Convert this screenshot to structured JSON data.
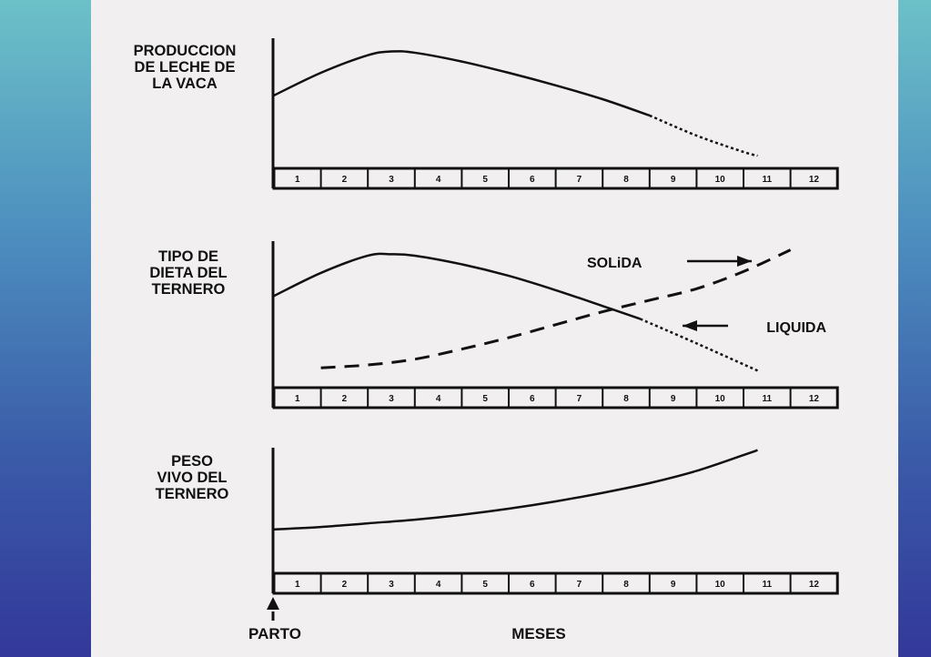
{
  "chart_data": [
    {
      "type": "line",
      "label_lines": [
        "PRODUCCION",
        "DE LECHE DE",
        "LA VACA"
      ],
      "categories": [
        "1",
        "2",
        "3",
        "4",
        "5",
        "6",
        "7",
        "8",
        "9",
        "10",
        "11",
        "12"
      ],
      "series": [
        {
          "style": "solid",
          "x": [
            0,
            1,
            2,
            2.5,
            3,
            4,
            5,
            6,
            7,
            8
          ],
          "y": [
            0.53,
            0.71,
            0.85,
            0.88,
            0.87,
            0.8,
            0.71,
            0.61,
            0.5,
            0.37
          ]
        },
        {
          "style": "dotted",
          "x": [
            8,
            9,
            10,
            10.3
          ],
          "y": [
            0.37,
            0.21,
            0.08,
            0.05
          ]
        }
      ]
    },
    {
      "type": "line",
      "label_lines": [
        "TIPO DE",
        "DIETA DEL",
        "TERNERO"
      ],
      "categories": [
        "1",
        "2",
        "3",
        "4",
        "5",
        "6",
        "7",
        "8",
        "9",
        "10",
        "11",
        "12"
      ],
      "annotations": [
        {
          "text": "SOLiDA",
          "arrow": "right"
        },
        {
          "text": "LIQUIDA",
          "arrow": "left"
        }
      ],
      "series": [
        {
          "name": "LIQUIDA",
          "style": "solid",
          "x": [
            0,
            1,
            2,
            2.5,
            3,
            4,
            5,
            6,
            7,
            7.8
          ],
          "y": [
            0.6,
            0.76,
            0.88,
            0.89,
            0.88,
            0.82,
            0.74,
            0.64,
            0.53,
            0.44
          ]
        },
        {
          "name": "LIQUIDA",
          "style": "dotted",
          "x": [
            7.8,
            9,
            10.3
          ],
          "y": [
            0.44,
            0.27,
            0.08
          ]
        },
        {
          "name": "SOLiDA",
          "style": "dashed",
          "x": [
            1,
            2,
            3,
            4,
            5,
            6,
            7,
            8,
            9,
            10,
            11
          ],
          "y": [
            0.1,
            0.12,
            0.16,
            0.23,
            0.31,
            0.4,
            0.49,
            0.57,
            0.65,
            0.77,
            0.92
          ]
        }
      ]
    },
    {
      "type": "line",
      "label_lines": [
        "PESO",
        "VIVO DEL",
        "TERNERO"
      ],
      "categories": [
        "1",
        "2",
        "3",
        "4",
        "5",
        "6",
        "7",
        "8",
        "9",
        "10",
        "11",
        "12"
      ],
      "series": [
        {
          "style": "solid",
          "x": [
            0,
            1,
            2,
            3,
            4,
            5,
            6,
            7,
            8,
            9,
            10,
            10.3
          ],
          "y": [
            0.3,
            0.32,
            0.35,
            0.38,
            0.42,
            0.47,
            0.53,
            0.6,
            0.68,
            0.78,
            0.91,
            0.95
          ]
        }
      ]
    }
  ],
  "footer": {
    "parto": "PARTO",
    "meses": "MESES"
  }
}
